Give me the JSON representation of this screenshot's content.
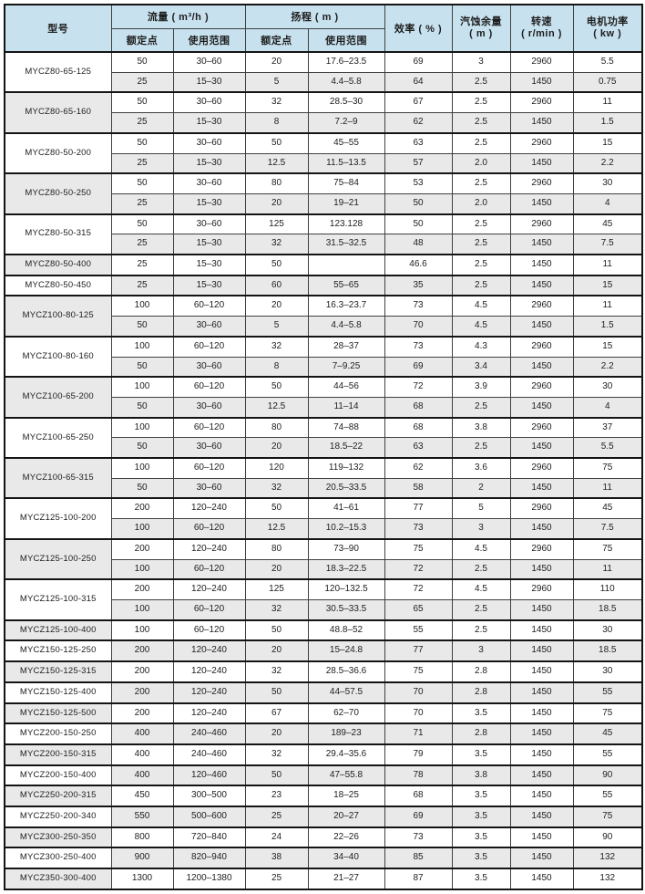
{
  "colors": {
    "header_bg": "#c7e1ee",
    "row_bg": "#ffffff",
    "row_alt_bg": "#e9e9e9",
    "border_thick": "#141414",
    "border_thin": "#404040",
    "text": "#1e1e1e"
  },
  "table": {
    "header": {
      "model": "型号",
      "flow": "流量 ( m³/h )",
      "head": "扬程 ( m )",
      "rated_point": "额定点",
      "usage_range": "使用范围",
      "efficiency": "效率 ( % )",
      "npsh_line1": "汽蚀余量",
      "npsh_line2": "( m )",
      "speed_line1": "转速",
      "speed_line2": "( r/min )",
      "power_line1": "电机功率",
      "power_line2": "( kw )"
    },
    "groups": [
      {
        "model": "MYCZ80-65-125",
        "rows": [
          [
            "50",
            "30–60",
            "20",
            "17.6–23.5",
            "69",
            "3",
            "2960",
            "5.5"
          ],
          [
            "25",
            "15–30",
            "5",
            "4.4–5.8",
            "64",
            "2.5",
            "1450",
            "0.75"
          ]
        ]
      },
      {
        "model": "MYCZ80-65-160",
        "rows": [
          [
            "50",
            "30–60",
            "32",
            "28.5–30",
            "67",
            "2.5",
            "2960",
            "11"
          ],
          [
            "25",
            "15–30",
            "8",
            "7.2–9",
            "62",
            "2.5",
            "1450",
            "1.5"
          ]
        ]
      },
      {
        "model": "MYCZ80-50-200",
        "rows": [
          [
            "50",
            "30–60",
            "50",
            "45–55",
            "63",
            "2.5",
            "2960",
            "15"
          ],
          [
            "25",
            "15–30",
            "12.5",
            "11.5–13.5",
            "57",
            "2.0",
            "1450",
            "2.2"
          ]
        ]
      },
      {
        "model": "MYCZ80-50-250",
        "rows": [
          [
            "50",
            "30–60",
            "80",
            "75–84",
            "53",
            "2.5",
            "2960",
            "30"
          ],
          [
            "25",
            "15–30",
            "20",
            "19–21",
            "50",
            "2.0",
            "1450",
            "4"
          ]
        ]
      },
      {
        "model": "MYCZ80-50-315",
        "rows": [
          [
            "50",
            "30–60",
            "125",
            "123.128",
            "50",
            "2.5",
            "2960",
            "45"
          ],
          [
            "25",
            "15–30",
            "32",
            "31.5–32.5",
            "48",
            "2.5",
            "1450",
            "7.5"
          ]
        ]
      },
      {
        "model": "MYCZ80-50-400",
        "rows": [
          [
            "25",
            "15–30",
            "50",
            "",
            "46.6",
            "2.5",
            "1450",
            "11"
          ]
        ]
      },
      {
        "model": "MYCZ80-50-450",
        "rows": [
          [
            "25",
            "15–30",
            "60",
            "55–65",
            "35",
            "2.5",
            "1450",
            "15"
          ]
        ]
      },
      {
        "model": "MYCZ100-80-125",
        "rows": [
          [
            "100",
            "60–120",
            "20",
            "16.3–23.7",
            "73",
            "4.5",
            "2960",
            "11"
          ],
          [
            "50",
            "30–60",
            "5",
            "4.4–5.8",
            "70",
            "4.5",
            "1450",
            "1.5"
          ]
        ]
      },
      {
        "model": "MYCZ100-80-160",
        "rows": [
          [
            "100",
            "60–120",
            "32",
            "28–37",
            "73",
            "4.3",
            "2960",
            "15"
          ],
          [
            "50",
            "30–60",
            "8",
            "7–9.25",
            "69",
            "3.4",
            "1450",
            "2.2"
          ]
        ]
      },
      {
        "model": "MYCZ100-65-200",
        "rows": [
          [
            "100",
            "60–120",
            "50",
            "44–56",
            "72",
            "3.9",
            "2960",
            "30"
          ],
          [
            "50",
            "30–60",
            "12.5",
            "11–14",
            "68",
            "2.5",
            "1450",
            "4"
          ]
        ]
      },
      {
        "model": "MYCZ100-65-250",
        "rows": [
          [
            "100",
            "60–120",
            "80",
            "74–88",
            "68",
            "3.8",
            "2960",
            "37"
          ],
          [
            "50",
            "30–60",
            "20",
            "18.5–22",
            "63",
            "2.5",
            "1450",
            "5.5"
          ]
        ]
      },
      {
        "model": "MYCZ100-65-315",
        "rows": [
          [
            "100",
            "60–120",
            "120",
            "119–132",
            "62",
            "3.6",
            "2960",
            "75"
          ],
          [
            "50",
            "30–60",
            "32",
            "20.5–33.5",
            "58",
            "2",
            "1450",
            "11"
          ]
        ]
      },
      {
        "model": "MYCZ125-100-200",
        "rows": [
          [
            "200",
            "120–240",
            "50",
            "41–61",
            "77",
            "5",
            "2960",
            "45"
          ],
          [
            "100",
            "60–120",
            "12.5",
            "10.2–15.3",
            "73",
            "3",
            "1450",
            "7.5"
          ]
        ]
      },
      {
        "model": "MYCZ125-100-250",
        "rows": [
          [
            "200",
            "120–240",
            "80",
            "73–90",
            "75",
            "4.5",
            "2960",
            "75"
          ],
          [
            "100",
            "60–120",
            "20",
            "18.3–22.5",
            "72",
            "2.5",
            "1450",
            "11"
          ]
        ]
      },
      {
        "model": "MYCZ125-100-315",
        "rows": [
          [
            "200",
            "120–240",
            "125",
            "120–132.5",
            "72",
            "4.5",
            "2960",
            "110"
          ],
          [
            "100",
            "60–120",
            "32",
            "30.5–33.5",
            "65",
            "2.5",
            "1450",
            "18.5"
          ]
        ]
      },
      {
        "model": "MYCZ125-100-400",
        "rows": [
          [
            "100",
            "60–120",
            "50",
            "48.8–52",
            "55",
            "2.5",
            "1450",
            "30"
          ]
        ]
      },
      {
        "model": "MYCZ150-125-250",
        "rows": [
          [
            "200",
            "120–240",
            "20",
            "15–24.8",
            "77",
            "3",
            "1450",
            "18.5"
          ]
        ]
      },
      {
        "model": "MYCZ150-125-315",
        "rows": [
          [
            "200",
            "120–240",
            "32",
            "28.5–36.6",
            "75",
            "2.8",
            "1450",
            "30"
          ]
        ]
      },
      {
        "model": "MYCZ150-125-400",
        "rows": [
          [
            "200",
            "120–240",
            "50",
            "44–57.5",
            "70",
            "2.8",
            "1450",
            "55"
          ]
        ]
      },
      {
        "model": "MYCZ150-125-500",
        "rows": [
          [
            "200",
            "120–240",
            "67",
            "62–70",
            "70",
            "3.5",
            "1450",
            "75"
          ]
        ]
      },
      {
        "model": "MYCZ200-150-250",
        "rows": [
          [
            "400",
            "240–460",
            "20",
            "189–23",
            "71",
            "2.8",
            "1450",
            "45"
          ]
        ]
      },
      {
        "model": "MYCZ200-150-315",
        "rows": [
          [
            "400",
            "240–460",
            "32",
            "29.4–35.6",
            "79",
            "3.5",
            "1450",
            "55"
          ]
        ]
      },
      {
        "model": "MYCZ200-150-400",
        "rows": [
          [
            "400",
            "120–460",
            "50",
            "47–55.8",
            "78",
            "3.8",
            "1450",
            "90"
          ]
        ]
      },
      {
        "model": "MYCZ250-200-315",
        "rows": [
          [
            "450",
            "300–500",
            "23",
            "18–25",
            "68",
            "3.5",
            "1450",
            "55"
          ]
        ]
      },
      {
        "model": "MYCZ250-200-340",
        "rows": [
          [
            "550",
            "500–600",
            "25",
            "20–27",
            "69",
            "3.5",
            "1450",
            "75"
          ]
        ]
      },
      {
        "model": "MYCZ300-250-350",
        "rows": [
          [
            "800",
            "720–840",
            "24",
            "22–26",
            "73",
            "3.5",
            "1450",
            "90"
          ]
        ]
      },
      {
        "model": "MYCZ300-250-400",
        "rows": [
          [
            "900",
            "820–940",
            "38",
            "34–40",
            "85",
            "3.5",
            "1450",
            "132"
          ]
        ]
      },
      {
        "model": "MYCZ350-300-400",
        "rows": [
          [
            "1300",
            "1200–1380",
            "25",
            "21–27",
            "87",
            "3.5",
            "1450",
            "132"
          ]
        ]
      }
    ]
  }
}
